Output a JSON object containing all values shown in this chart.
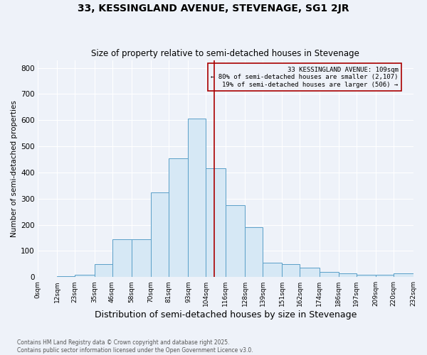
{
  "title": "33, KESSINGLAND AVENUE, STEVENAGE, SG1 2JR",
  "subtitle": "Size of property relative to semi-detached houses in Stevenage",
  "xlabel": "Distribution of semi-detached houses by size in Stevenage",
  "ylabel": "Number of semi-detached properties",
  "bin_labels": [
    "0sqm",
    "12sqm",
    "23sqm",
    "35sqm",
    "46sqm",
    "58sqm",
    "70sqm",
    "81sqm",
    "93sqm",
    "104sqm",
    "116sqm",
    "128sqm",
    "139sqm",
    "151sqm",
    "162sqm",
    "174sqm",
    "186sqm",
    "197sqm",
    "209sqm",
    "220sqm",
    "232sqm"
  ],
  "bin_edges": [
    0,
    12,
    23,
    35,
    46,
    58,
    70,
    81,
    93,
    104,
    116,
    128,
    139,
    151,
    162,
    174,
    186,
    197,
    209,
    220,
    232
  ],
  "bar_heights": [
    0,
    2,
    10,
    50,
    145,
    145,
    325,
    455,
    605,
    415,
    275,
    190,
    55,
    50,
    35,
    20,
    15,
    10,
    10,
    15
  ],
  "bar_color": "#d6e8f5",
  "bar_edge_color": "#5a9fc8",
  "vline_x": 109,
  "vline_color": "#aa0000",
  "annotation_title": "33 KESSINGLAND AVENUE: 109sqm",
  "annotation_line1": "← 80% of semi-detached houses are smaller (2,107)",
  "annotation_line2": "19% of semi-detached houses are larger (506) →",
  "annotation_box_edge": "#aa0000",
  "ylim": [
    0,
    830
  ],
  "yticks": [
    0,
    100,
    200,
    300,
    400,
    500,
    600,
    700,
    800
  ],
  "footer": "Contains HM Land Registry data © Crown copyright and database right 2025.\nContains public sector information licensed under the Open Government Licence v3.0.",
  "bg_color": "#eef2f9",
  "title_fontsize": 10,
  "subtitle_fontsize": 8.5,
  "xlabel_fontsize": 9,
  "ylabel_fontsize": 7.5
}
